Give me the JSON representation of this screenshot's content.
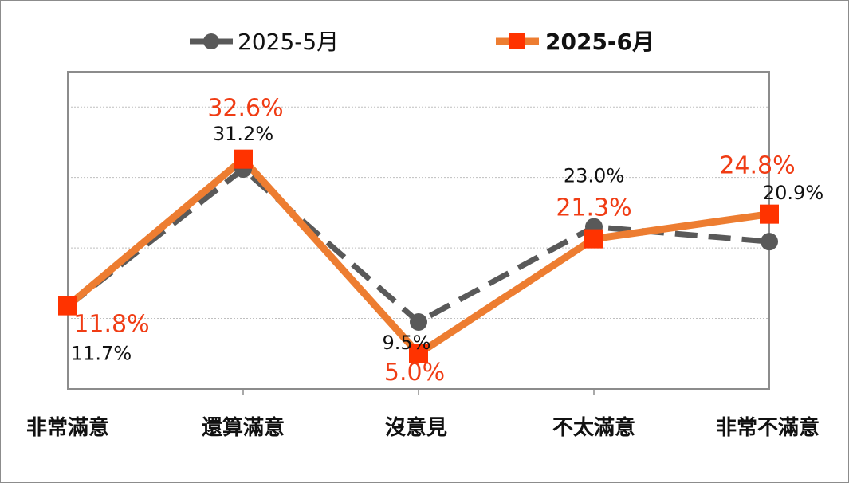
{
  "chart_data": {
    "type": "line",
    "categories": [
      "非常滿意",
      "還算滿意",
      "沒意見",
      "不太滿意",
      "非常不滿意"
    ],
    "series": [
      {
        "name": "2025-5月",
        "values": [
          11.7,
          31.2,
          9.5,
          23.0,
          20.9
        ],
        "labels": [
          "11.7%",
          "31.2%",
          "9.5%",
          "23.0%",
          "20.9%"
        ],
        "color": "#595959",
        "line_style": "dashed",
        "marker": "circle"
      },
      {
        "name": "2025-6月",
        "values": [
          11.8,
          32.6,
          5.0,
          21.3,
          24.8
        ],
        "labels": [
          "11.8%",
          "32.6%",
          "5.0%",
          "21.3%",
          "24.8%"
        ],
        "color": "#ed7d31",
        "marker_color": "#ff3300",
        "line_style": "solid",
        "marker": "square"
      }
    ],
    "ylim": [
      0,
      45
    ],
    "grid": "horizontal",
    "legend": "top",
    "label_color_jun": "#f03c14"
  }
}
